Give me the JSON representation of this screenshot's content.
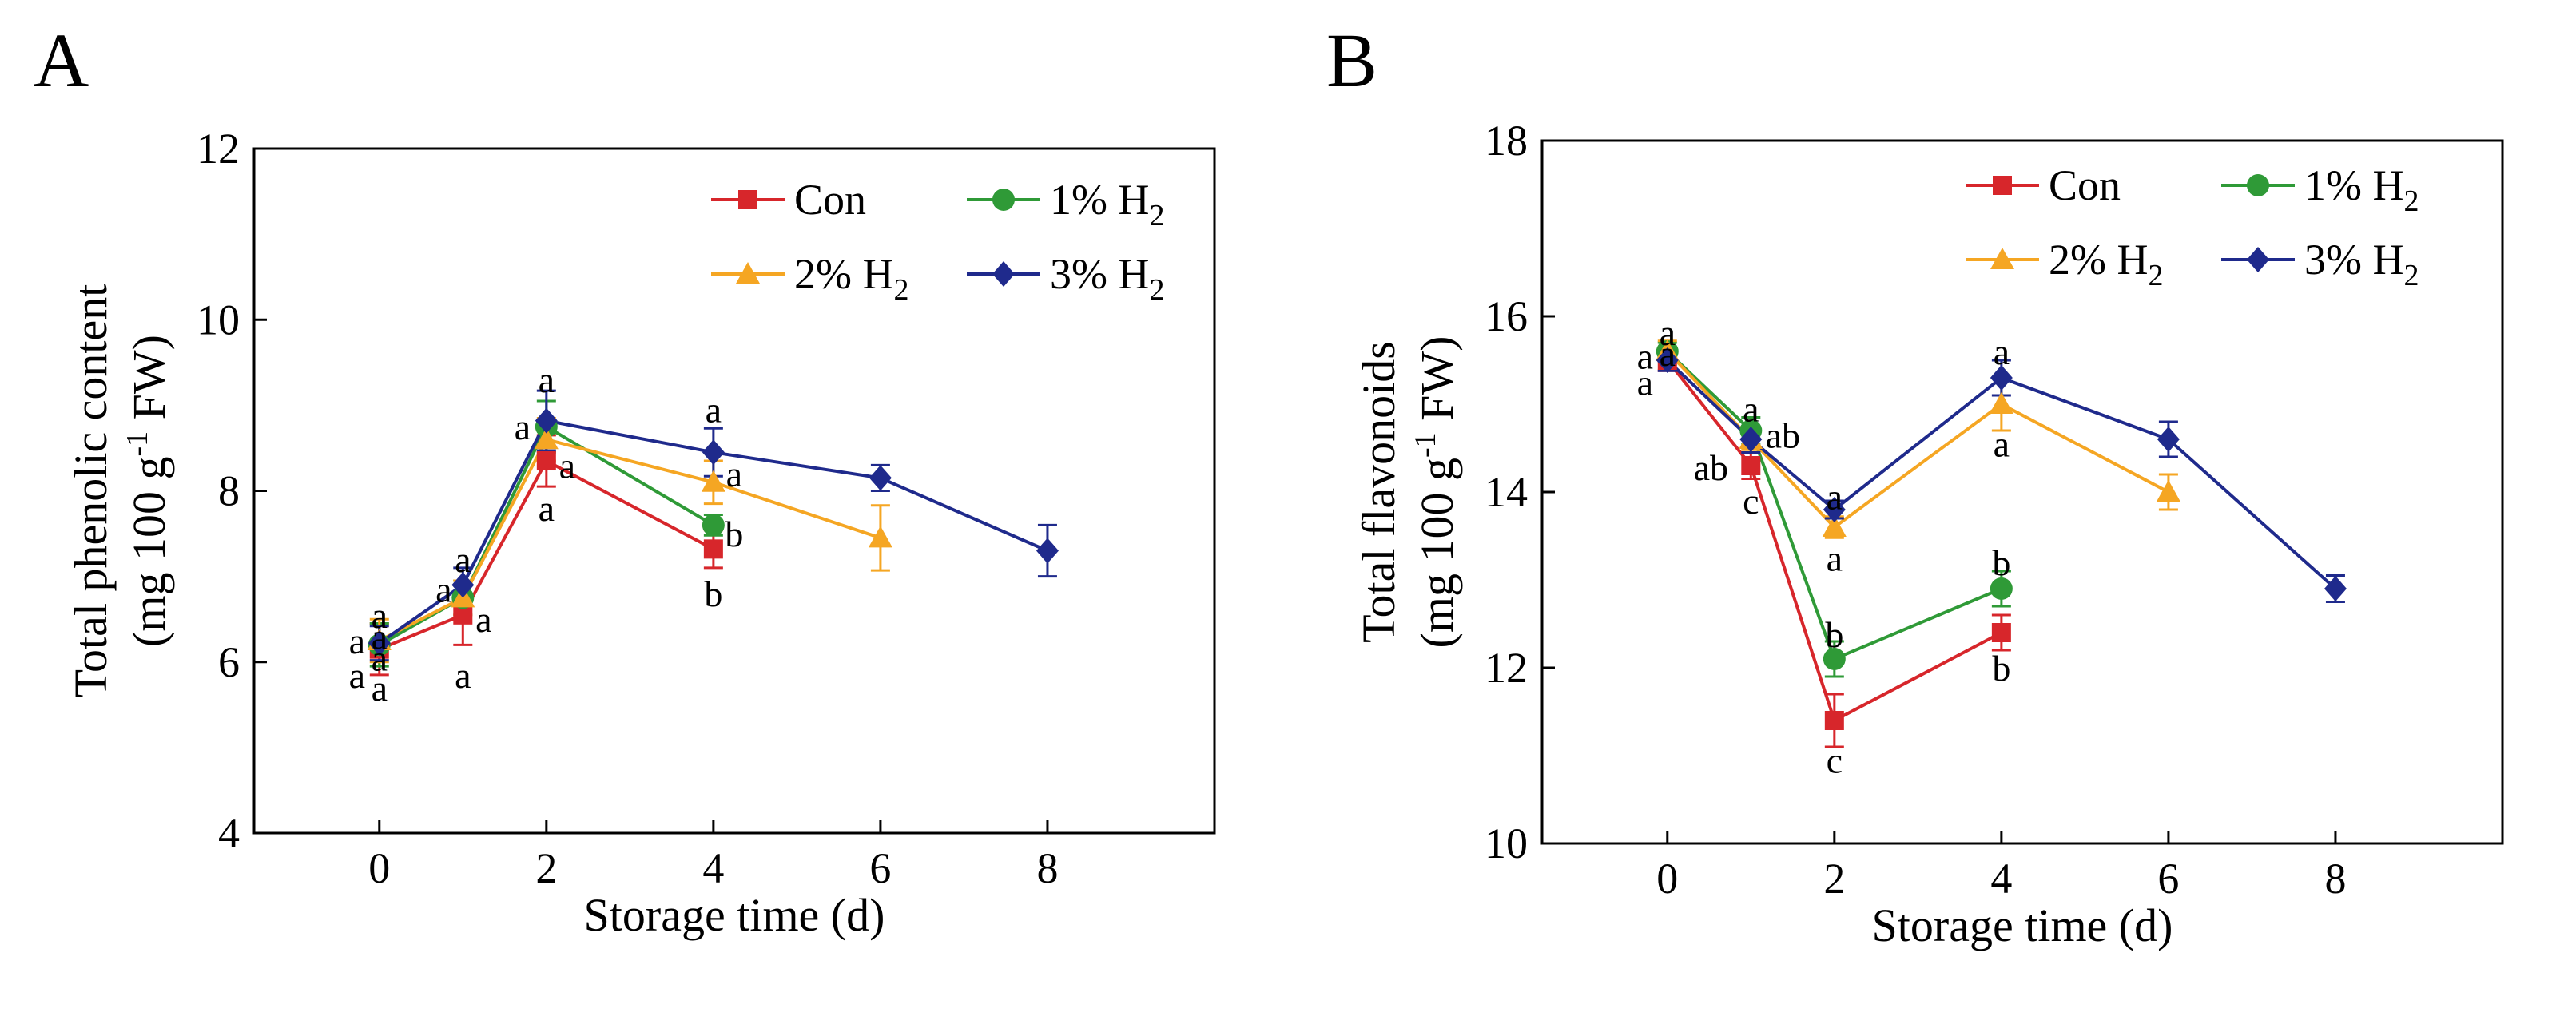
{
  "chart_data": [
    {
      "panel": "A",
      "type": "line",
      "ylabel_main": "Total phenolic content",
      "ylabel_unit_pre": "(mg 100 g",
      "ylabel_unit_sup": "-1",
      "ylabel_unit_post": " FW)",
      "xlabel": "Storage time (d)",
      "xlim": [
        -1.5,
        10
      ],
      "ylim": [
        4,
        12
      ],
      "xticks": [
        0,
        2,
        4,
        6,
        8
      ],
      "yticks": [
        4,
        6,
        8,
        10,
        12
      ],
      "legend": {
        "placement": "top-right",
        "columns": 2
      },
      "series": [
        {
          "name": "Con",
          "sub": "",
          "color": "#d7262b",
          "marker": "square",
          "x": [
            0,
            1,
            2,
            4
          ],
          "values": [
            6.15,
            6.55,
            8.35,
            7.32
          ],
          "errors": [
            0.3,
            0.35,
            0.3,
            0.22
          ]
        },
        {
          "name": "1% H",
          "sub": "2",
          "color": "#2f9a37",
          "marker": "circle",
          "x": [
            0,
            1,
            2,
            4
          ],
          "values": [
            6.2,
            6.75,
            8.75,
            7.6
          ],
          "errors": [
            0.25,
            0.2,
            0.3,
            0.12
          ]
        },
        {
          "name": "2% H",
          "sub": "2",
          "color": "#f5a623",
          "marker": "triangle",
          "x": [
            0,
            1,
            2,
            4,
            6
          ],
          "values": [
            6.25,
            6.75,
            8.6,
            8.1,
            7.45
          ],
          "errors": [
            0.25,
            0.2,
            0.25,
            0.25,
            0.38
          ]
        },
        {
          "name": "3% H",
          "sub": "2",
          "color": "#1f2a8c",
          "marker": "diamond",
          "x": [
            0,
            1,
            2,
            4,
            6,
            8
          ],
          "values": [
            6.22,
            6.9,
            8.82,
            8.45,
            8.15,
            7.3
          ],
          "errors": [
            0.2,
            0.2,
            0.35,
            0.28,
            0.15,
            0.3
          ]
        }
      ],
      "annotations": [
        {
          "x": 0,
          "y": 6.55,
          "dx": 0,
          "text": "a"
        },
        {
          "x": 0,
          "y": 6.3,
          "dx": 0,
          "text": "a"
        },
        {
          "x": 0,
          "y": 6.05,
          "dx": 0,
          "text": "a"
        },
        {
          "x": 0,
          "y": 5.7,
          "dx": 0,
          "text": "a"
        },
        {
          "x": 0,
          "y": 6.25,
          "dx": -28,
          "text": "a"
        },
        {
          "x": 0,
          "y": 5.85,
          "dx": -28,
          "text": "a"
        },
        {
          "x": 1,
          "y": 7.2,
          "dx": 0,
          "text": "a"
        },
        {
          "x": 1,
          "y": 6.85,
          "dx": -24,
          "text": "a"
        },
        {
          "x": 1,
          "y": 6.5,
          "dx": 26,
          "text": "a"
        },
        {
          "x": 1,
          "y": 5.85,
          "dx": 0,
          "text": "a"
        },
        {
          "x": 2,
          "y": 9.3,
          "dx": 0,
          "text": "a"
        },
        {
          "x": 2,
          "y": 8.75,
          "dx": -30,
          "text": "a"
        },
        {
          "x": 2,
          "y": 8.3,
          "dx": 26,
          "text": "a"
        },
        {
          "x": 2,
          "y": 7.8,
          "dx": 0,
          "text": "a"
        },
        {
          "x": 4,
          "y": 8.95,
          "dx": 0,
          "text": "a"
        },
        {
          "x": 4,
          "y": 8.2,
          "dx": 26,
          "text": "a"
        },
        {
          "x": 4,
          "y": 7.5,
          "dx": 26,
          "text": "b"
        },
        {
          "x": 4,
          "y": 6.8,
          "dx": 0,
          "text": "b"
        }
      ]
    },
    {
      "panel": "B",
      "type": "line",
      "ylabel_main": "Total flavonoids",
      "ylabel_unit_pre": "(mg 100 g",
      "ylabel_unit_sup": "-1",
      "ylabel_unit_post": " FW)",
      "xlabel": "Storage time (d)",
      "xlim": [
        -1.5,
        10
      ],
      "ylim": [
        10,
        18
      ],
      "xticks": [
        0,
        2,
        4,
        6,
        8
      ],
      "yticks": [
        10,
        12,
        14,
        16,
        18
      ],
      "legend": {
        "placement": "top-right",
        "columns": 2
      },
      "series": [
        {
          "name": "Con",
          "sub": "",
          "color": "#d7262b",
          "marker": "square",
          "x": [
            0,
            1,
            2,
            4
          ],
          "values": [
            15.5,
            14.3,
            11.4,
            12.4
          ],
          "errors": [
            0.12,
            0.15,
            0.3,
            0.2
          ]
        },
        {
          "name": "1% H",
          "sub": "2",
          "color": "#2f9a37",
          "marker": "circle",
          "x": [
            0,
            1,
            2,
            4
          ],
          "values": [
            15.6,
            14.7,
            12.1,
            12.9
          ],
          "errors": [
            0.1,
            0.15,
            0.2,
            0.2
          ]
        },
        {
          "name": "2% H",
          "sub": "2",
          "color": "#f5a623",
          "marker": "triangle",
          "x": [
            0,
            1,
            2,
            4,
            6
          ],
          "values": [
            15.6,
            14.6,
            13.6,
            15.0,
            14.0
          ],
          "errors": [
            0.12,
            0.12,
            0.12,
            0.3,
            0.2
          ]
        },
        {
          "name": "3% H",
          "sub": "2",
          "color": "#1f2a8c",
          "marker": "diamond",
          "x": [
            0,
            1,
            2,
            4,
            6,
            8
          ],
          "values": [
            15.5,
            14.6,
            13.8,
            15.3,
            14.6,
            12.9
          ],
          "errors": [
            0.12,
            0.15,
            0.1,
            0.2,
            0.2,
            0.15
          ]
        }
      ],
      "annotations": [
        {
          "x": 0,
          "y": 15.82,
          "dx": 0,
          "text": "a"
        },
        {
          "x": 0,
          "y": 15.55,
          "dx": -28,
          "text": "a"
        },
        {
          "x": 0,
          "y": 15.58,
          "dx": 0,
          "text": "a"
        },
        {
          "x": 0,
          "y": 15.25,
          "dx": -28,
          "text": "a"
        },
        {
          "x": 1,
          "y": 14.95,
          "dx": 0,
          "text": "a"
        },
        {
          "x": 1,
          "y": 14.65,
          "dx": 40,
          "text": "ab"
        },
        {
          "x": 1,
          "y": 14.28,
          "dx": -50,
          "text": "ab"
        },
        {
          "x": 1,
          "y": 13.9,
          "dx": 0,
          "text": "c"
        },
        {
          "x": 2,
          "y": 13.95,
          "dx": 0,
          "text": "a"
        },
        {
          "x": 2,
          "y": 13.25,
          "dx": 0,
          "text": "a"
        },
        {
          "x": 2,
          "y": 12.38,
          "dx": 0,
          "text": "b"
        },
        {
          "x": 2,
          "y": 10.95,
          "dx": 0,
          "text": "c"
        },
        {
          "x": 4,
          "y": 15.6,
          "dx": 0,
          "text": "a"
        },
        {
          "x": 4,
          "y": 14.55,
          "dx": 0,
          "text": "a"
        },
        {
          "x": 4,
          "y": 13.2,
          "dx": 0,
          "text": "b"
        },
        {
          "x": 4,
          "y": 12.0,
          "dx": 0,
          "text": "b"
        }
      ]
    }
  ]
}
